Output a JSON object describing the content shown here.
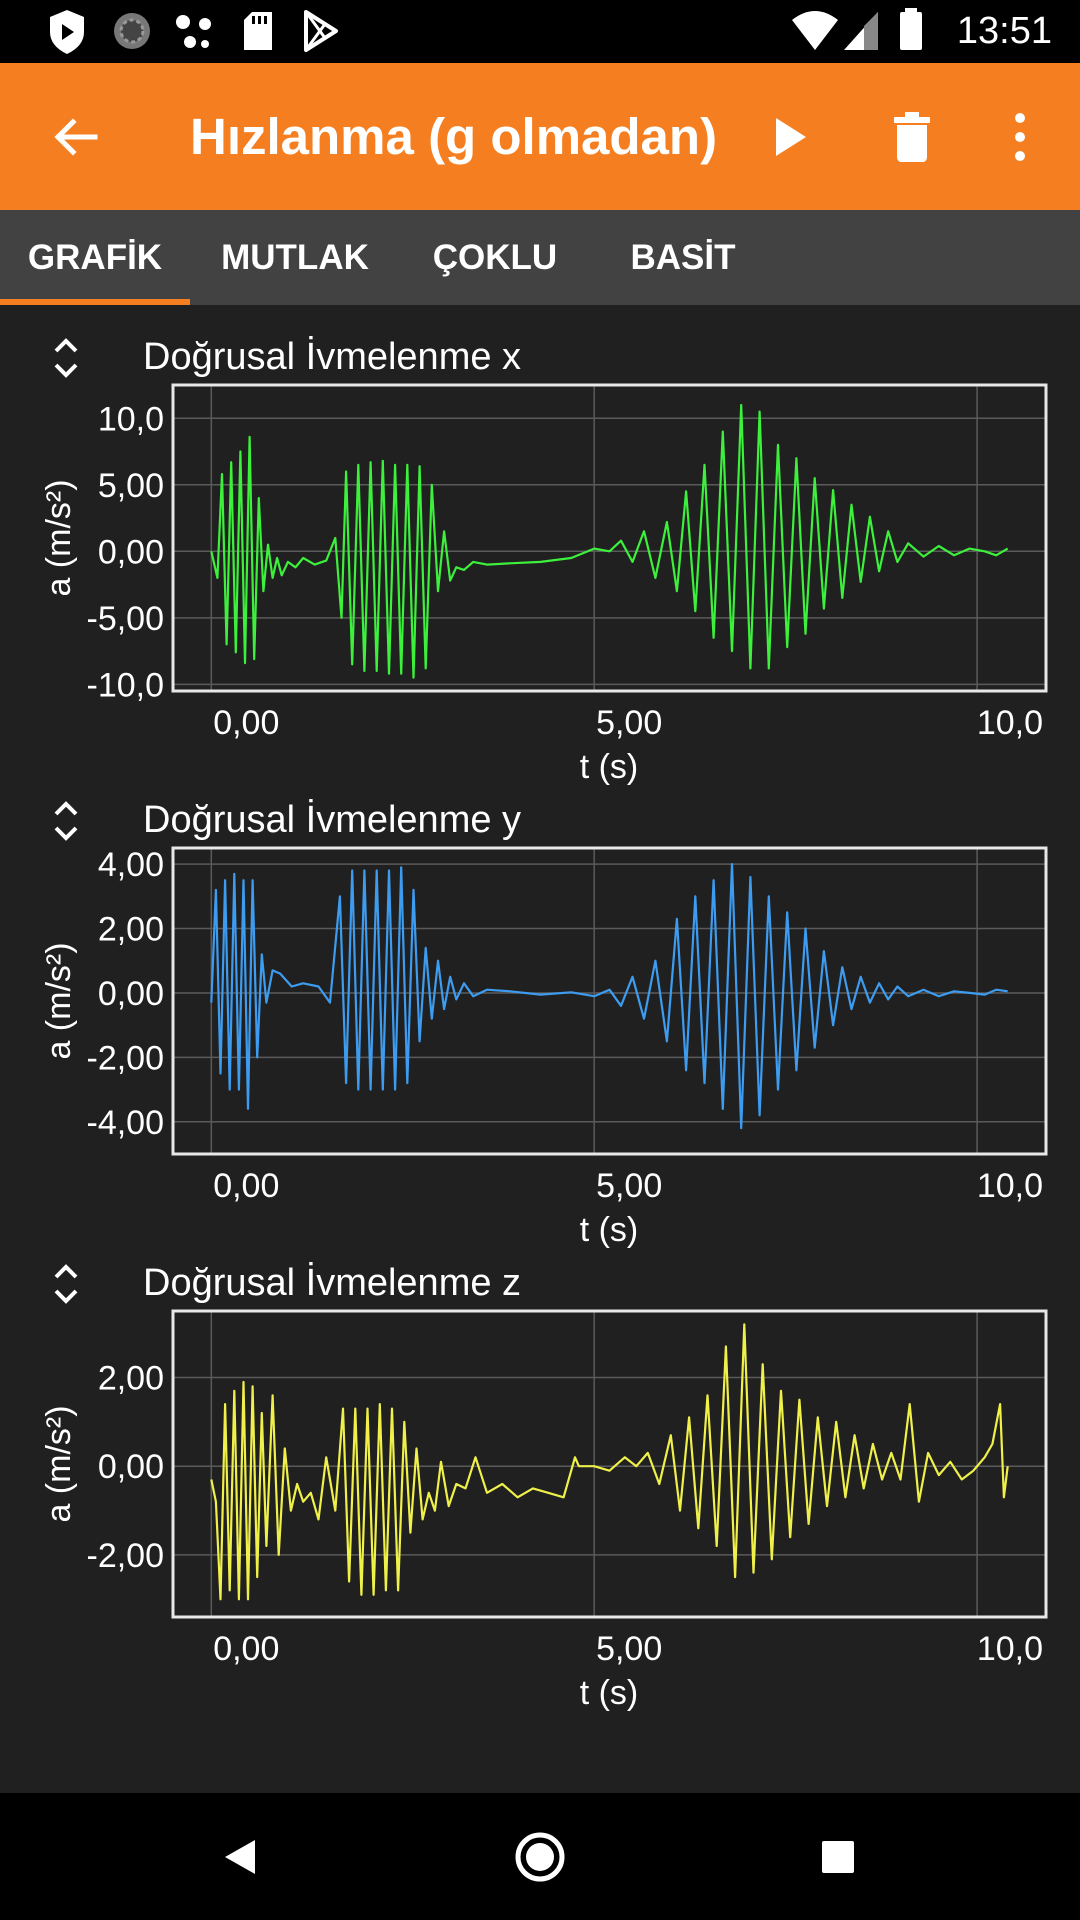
{
  "status_bar": {
    "time": "13:51",
    "icons": [
      "shield-icon",
      "loading-circle-icon",
      "dots-icon",
      "sd-card-icon",
      "play-store-icon",
      "wifi-icon",
      "signal-icon",
      "battery-icon"
    ]
  },
  "app_bar": {
    "title": "Hızlanma (g olmadan)",
    "color": "#f57f20",
    "icons": [
      "back-arrow-icon",
      "play-icon",
      "trash-icon",
      "more-vert-icon"
    ]
  },
  "tabs": [
    {
      "label": "GRAFİK",
      "selected": true
    },
    {
      "label": "MUTLAK",
      "selected": false
    },
    {
      "label": "ÇOKLU",
      "selected": false
    },
    {
      "label": "BASİT",
      "selected": false
    }
  ],
  "chart_data": [
    {
      "type": "line",
      "title": "Doğrusal İvmelenme x",
      "xlabel": "t (s)",
      "ylabel": "a (m/s²)",
      "xlim": [
        -0.5,
        10.9
      ],
      "ylim": [
        -10.5,
        12.5
      ],
      "xticks": [
        {
          "v": 0,
          "label": "0,00"
        },
        {
          "v": 5,
          "label": "5,00"
        },
        {
          "v": 10,
          "label": "10,0"
        }
      ],
      "yticks": [
        {
          "v": 10,
          "label": "10,0"
        },
        {
          "v": 5,
          "label": "5,00"
        },
        {
          "v": 0,
          "label": "0,00"
        },
        {
          "v": -5,
          "label": "-5,00"
        },
        {
          "v": -10,
          "label": "-10,0"
        }
      ],
      "grid": true,
      "color": "#3cf03c",
      "series": [
        {
          "x": [
            0,
            0.08,
            0.14,
            0.2,
            0.26,
            0.32,
            0.38,
            0.44,
            0.5,
            0.56,
            0.62,
            0.68,
            0.74,
            0.8,
            0.86,
            0.92,
            1.0,
            1.1,
            1.2,
            1.35,
            1.5,
            1.62,
            1.7,
            1.76,
            1.84,
            1.92,
            2.0,
            2.08,
            2.16,
            2.24,
            2.32,
            2.4,
            2.48,
            2.56,
            2.64,
            2.72,
            2.8,
            2.88,
            2.96,
            3.04,
            3.12,
            3.2,
            3.3,
            3.42,
            3.6,
            3.9,
            4.3,
            4.7,
            5.0,
            5.2,
            5.35,
            5.5,
            5.65,
            5.8,
            5.95,
            6.08,
            6.2,
            6.32,
            6.44,
            6.56,
            6.68,
            6.8,
            6.92,
            7.04,
            7.16,
            7.28,
            7.4,
            7.52,
            7.64,
            7.76,
            7.88,
            8.0,
            8.12,
            8.24,
            8.36,
            8.48,
            8.6,
            8.72,
            8.84,
            8.96,
            9.1,
            9.3,
            9.5,
            9.7,
            9.9,
            10.1,
            10.25,
            10.4
          ],
          "y": [
            0,
            -2,
            5.8,
            -7,
            6.7,
            -7.6,
            7.5,
            -8.4,
            8.6,
            -8.1,
            4,
            -3,
            0.5,
            -2,
            -0.5,
            -1.8,
            -0.8,
            -1.2,
            -0.5,
            -1,
            -0.7,
            1,
            -5,
            6,
            -8.5,
            6.5,
            -9,
            6.7,
            -9,
            6.8,
            -9.2,
            6.5,
            -9.2,
            6.5,
            -9.5,
            6.4,
            -8.8,
            5,
            -3,
            1.5,
            -2.2,
            -1.2,
            -1.4,
            -0.8,
            -1,
            -0.9,
            -0.8,
            -0.5,
            0.2,
            0,
            0.8,
            -0.8,
            1.5,
            -2,
            2.2,
            -3,
            4.5,
            -4.5,
            6.5,
            -6.5,
            9,
            -7.5,
            11,
            -8.8,
            10.5,
            -8.8,
            8,
            -7.2,
            7,
            -6.2,
            5.5,
            -4.3,
            4.6,
            -3.5,
            3.5,
            -2.3,
            2.6,
            -1.5,
            1.5,
            -0.8,
            0.6,
            -0.4,
            0.4,
            -0.3,
            0.2,
            0,
            -0.3,
            0.2
          ]
        }
      ]
    },
    {
      "type": "line",
      "title": "Doğrusal İvmelenme y",
      "xlabel": "t (s)",
      "ylabel": "a (m/s²)",
      "xlim": [
        -0.5,
        10.9
      ],
      "ylim": [
        -5,
        4.5
      ],
      "xticks": [
        {
          "v": 0,
          "label": "0,00"
        },
        {
          "v": 5,
          "label": "5,00"
        },
        {
          "v": 10,
          "label": "10,0"
        }
      ],
      "yticks": [
        {
          "v": 4,
          "label": "4,00"
        },
        {
          "v": 2,
          "label": "2,00"
        },
        {
          "v": 0,
          "label": "0,00"
        },
        {
          "v": -2,
          "label": "-2,00"
        },
        {
          "v": -4,
          "label": "-4,00"
        }
      ],
      "grid": true,
      "color": "#3d9cf0",
      "series": [
        {
          "x": [
            0,
            0.06,
            0.12,
            0.18,
            0.24,
            0.3,
            0.36,
            0.42,
            0.48,
            0.54,
            0.6,
            0.66,
            0.72,
            0.8,
            0.9,
            1.05,
            1.2,
            1.4,
            1.55,
            1.68,
            1.76,
            1.84,
            1.92,
            2.0,
            2.08,
            2.16,
            2.24,
            2.32,
            2.4,
            2.48,
            2.56,
            2.64,
            2.72,
            2.8,
            2.88,
            2.96,
            3.04,
            3.12,
            3.2,
            3.3,
            3.42,
            3.6,
            3.9,
            4.3,
            4.7,
            5.0,
            5.2,
            5.35,
            5.5,
            5.65,
            5.8,
            5.95,
            6.08,
            6.2,
            6.32,
            6.44,
            6.56,
            6.68,
            6.8,
            6.92,
            7.04,
            7.16,
            7.28,
            7.4,
            7.52,
            7.64,
            7.76,
            7.88,
            8.0,
            8.12,
            8.24,
            8.36,
            8.48,
            8.6,
            8.72,
            8.84,
            8.96,
            9.1,
            9.3,
            9.5,
            9.7,
            9.9,
            10.1,
            10.25,
            10.4
          ],
          "y": [
            -0.3,
            3.2,
            -2.5,
            3.5,
            -3,
            3.7,
            -3,
            3.5,
            -3.6,
            3.5,
            -2,
            1.2,
            -0.3,
            0.7,
            0.6,
            0.2,
            0.3,
            0.2,
            -0.3,
            3,
            -2.8,
            3.8,
            -3,
            3.8,
            -3,
            3.8,
            -3,
            3.8,
            -3,
            3.9,
            -2.8,
            3.2,
            -1.5,
            1.4,
            -0.8,
            1,
            -0.5,
            0.5,
            -0.2,
            0.3,
            -0.1,
            0.1,
            0.05,
            -0.05,
            0.02,
            -0.1,
            0.1,
            -0.4,
            0.5,
            -0.8,
            1,
            -1.5,
            2.3,
            -2.4,
            3,
            -2.8,
            3.5,
            -3.6,
            4,
            -4.2,
            3.6,
            -3.8,
            3,
            -3,
            2.5,
            -2.4,
            2,
            -1.7,
            1.3,
            -1,
            0.8,
            -0.5,
            0.5,
            -0.3,
            0.3,
            -0.2,
            0.2,
            -0.1,
            0.1,
            -0.1,
            0.05,
            0,
            -0.05,
            0.1,
            0.05
          ]
        }
      ]
    },
    {
      "type": "line",
      "title": "Doğrusal İvmelenme z",
      "xlabel": "t (s)",
      "ylabel": "a (m/s²)",
      "xlim": [
        -0.5,
        10.9
      ],
      "ylim": [
        -3.4,
        3.5
      ],
      "xticks": [
        {
          "v": 0,
          "label": "0,00"
        },
        {
          "v": 5,
          "label": "5,00"
        },
        {
          "v": 10,
          "label": "10,0"
        }
      ],
      "yticks": [
        {
          "v": 2,
          "label": "2,00"
        },
        {
          "v": 0,
          "label": "0,00"
        },
        {
          "v": -2,
          "label": "-2,00"
        }
      ],
      "grid": true,
      "color": "#f0f04a",
      "series": [
        {
          "x": [
            0,
            0.06,
            0.12,
            0.18,
            0.24,
            0.3,
            0.36,
            0.42,
            0.48,
            0.54,
            0.6,
            0.66,
            0.72,
            0.8,
            0.88,
            0.96,
            1.04,
            1.12,
            1.2,
            1.3,
            1.4,
            1.5,
            1.62,
            1.72,
            1.8,
            1.88,
            1.96,
            2.04,
            2.12,
            2.2,
            2.28,
            2.36,
            2.44,
            2.52,
            2.6,
            2.68,
            2.76,
            2.84,
            2.92,
            3.0,
            3.1,
            3.2,
            3.32,
            3.45,
            3.6,
            3.8,
            4.0,
            4.2,
            4.4,
            4.6,
            4.75,
            4.8,
            5.0,
            5.2,
            5.4,
            5.55,
            5.7,
            5.85,
            6.0,
            6.12,
            6.24,
            6.36,
            6.48,
            6.6,
            6.72,
            6.84,
            6.96,
            7.08,
            7.2,
            7.32,
            7.44,
            7.56,
            7.68,
            7.8,
            7.92,
            8.04,
            8.16,
            8.28,
            8.4,
            8.52,
            8.64,
            8.76,
            8.88,
            9.0,
            9.12,
            9.24,
            9.36,
            9.5,
            9.65,
            9.8,
            9.95,
            10.1,
            10.2,
            10.3,
            10.35,
            10.4
          ],
          "y": [
            -0.3,
            -0.8,
            -3,
            1.4,
            -2.8,
            1.7,
            -3,
            1.9,
            -3,
            1.8,
            -2.5,
            1.2,
            -1.8,
            1.6,
            -2,
            0.4,
            -1,
            -0.4,
            -0.8,
            -0.6,
            -1.2,
            0.2,
            -1,
            1.3,
            -2.6,
            1.3,
            -2.9,
            1.3,
            -2.9,
            1.4,
            -2.8,
            1.3,
            -2.8,
            1,
            -1.5,
            0.4,
            -1.2,
            -0.6,
            -1,
            0.1,
            -0.9,
            -0.4,
            -0.5,
            0.2,
            -0.6,
            -0.4,
            -0.7,
            -0.5,
            -0.6,
            -0.7,
            0.2,
            0,
            0,
            -0.1,
            0.2,
            0,
            0.3,
            -0.4,
            0.7,
            -1,
            1.1,
            -1.4,
            1.6,
            -1.8,
            2.7,
            -2.5,
            3.2,
            -2.4,
            2.3,
            -2.1,
            1.7,
            -1.6,
            1.5,
            -1.3,
            1.1,
            -0.9,
            1,
            -0.7,
            0.7,
            -0.5,
            0.5,
            -0.3,
            0.3,
            -0.3,
            1.4,
            -0.8,
            0.3,
            -0.2,
            0.1,
            -0.3,
            -0.1,
            0.2,
            0.5,
            1.4,
            -0.7,
            0
          ]
        }
      ]
    }
  ],
  "nav_bar": {
    "icons": [
      "back-triangle-icon",
      "home-circle-icon",
      "recents-square-icon"
    ]
  }
}
